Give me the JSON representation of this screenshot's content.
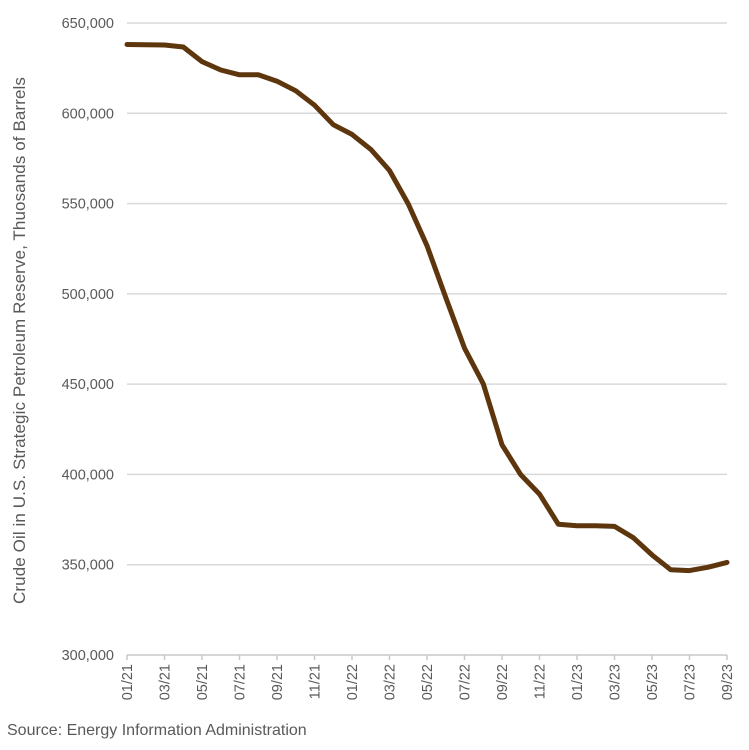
{
  "chart_data": {
    "type": "line",
    "title": "",
    "ylabel": "Crude Oil in U.S. Strategic Petroleum Reserve, Thuosands of Barrels",
    "xlabel": "",
    "categories": [
      "01/21",
      "02/21",
      "03/21",
      "04/21",
      "05/21",
      "06/21",
      "07/21",
      "08/21",
      "09/21",
      "10/21",
      "11/21",
      "12/21",
      "01/22",
      "02/22",
      "03/22",
      "04/22",
      "05/22",
      "06/22",
      "07/22",
      "08/22",
      "09/22",
      "10/22",
      "11/22",
      "12/22",
      "01/23",
      "02/23",
      "03/23",
      "04/23",
      "05/23",
      "06/23",
      "07/23",
      "08/23",
      "09/23"
    ],
    "values": [
      638086,
      637972,
      637800,
      636702,
      628607,
      623951,
      621300,
      621300,
      617766,
      612456,
      604505,
      593678,
      588327,
      580022,
      568334,
      549743,
      526646,
      497942,
      469936,
      450148,
      416389,
      399789,
      389087,
      372446,
      371579,
      371580,
      371200,
      364939,
      355439,
      347156,
      346758,
      348614,
      351274
    ],
    "series_name": "Crude Oil in U.S. Strategic Petroleum Reserve",
    "ylim": [
      300000,
      650000
    ],
    "y_tick_step": 50000,
    "y_tick_labels": [
      "650,000",
      "600,000",
      "550,000",
      "500,000",
      "450,000",
      "400,000",
      "350,000",
      "300,000"
    ],
    "x_tick_labels": [
      "01/21",
      "03/21",
      "05/21",
      "07/21",
      "09/21",
      "11/21",
      "01/22",
      "03/22",
      "05/22",
      "07/22",
      "09/22",
      "11/22",
      "01/23",
      "03/23",
      "05/23",
      "07/23",
      "09/23"
    ],
    "x_tick_every": 2,
    "grid": "horizontal",
    "legend": "none",
    "line_color": "#5e360e"
  },
  "footer": {
    "source_note": "Source: Energy Information Administration"
  },
  "colors": {
    "background": "#ffffff",
    "text": "#595959",
    "gridline": "#d9d9d9",
    "axis": "#c8c8c8",
    "line": "#5e360e"
  }
}
